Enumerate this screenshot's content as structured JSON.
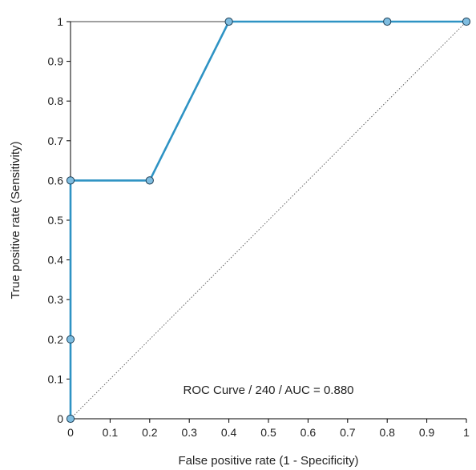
{
  "chart_data": {
    "type": "line",
    "title": "",
    "xlabel": "False positive rate (1 - Specificity)",
    "ylabel": "True positive rate (Sensitivity)",
    "xlim": [
      0,
      1
    ],
    "ylim": [
      0,
      1
    ],
    "x_ticks": [
      "0",
      "0.1",
      "0.2",
      "0.3",
      "0.4",
      "0.5",
      "0.6",
      "0.7",
      "0.8",
      "0.9",
      "1"
    ],
    "y_ticks": [
      "0",
      "0.1",
      "0.2",
      "0.3",
      "0.4",
      "0.5",
      "0.6",
      "0.7",
      "0.8",
      "0.9",
      "1"
    ],
    "grid": false,
    "series": [
      {
        "x": [
          0,
          0,
          0,
          0.2,
          0.4,
          0.8,
          1
        ],
        "y": [
          0,
          0.2,
          0.6,
          0.6,
          1,
          1,
          1
        ],
        "color": "#2e93c4",
        "marker_color": "#7fbde0"
      }
    ],
    "reference_line": {
      "x": [
        0,
        1
      ],
      "y": [
        0,
        1
      ],
      "style": "dotted",
      "color": "#555555"
    },
    "annotations": [
      {
        "text": "ROC Curve / 240 / AUC = 0.880",
        "x": 0.5,
        "y": 0.07
      }
    ]
  }
}
